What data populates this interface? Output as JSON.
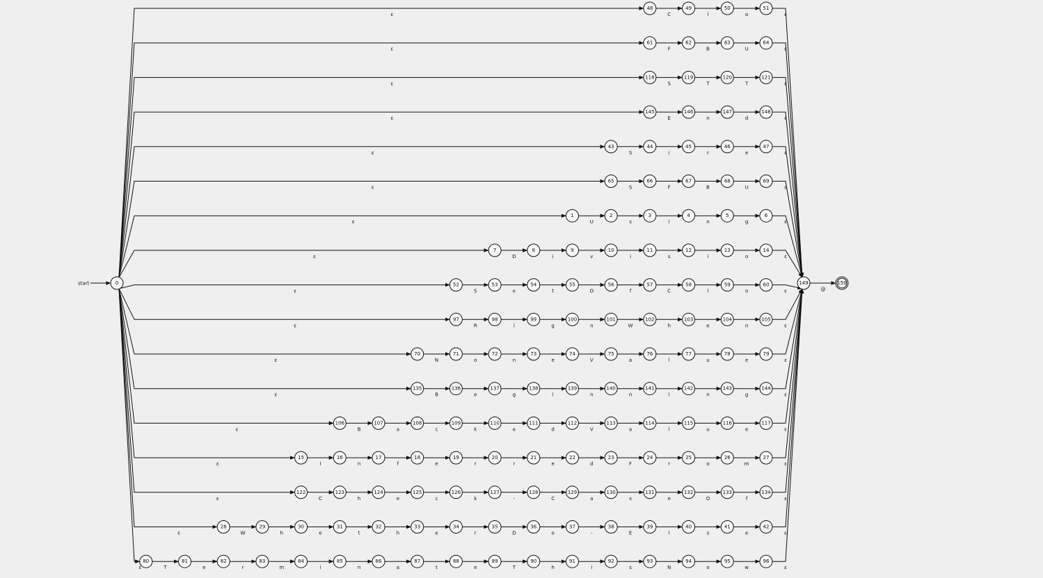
{
  "diagram": {
    "start_label": "start",
    "start_state": "0",
    "join_state": "149",
    "final_state": "150",
    "final_symbol": "@",
    "epsilon": "ε",
    "rows": [
      {
        "states": [
          "48",
          "49",
          "50",
          "51"
        ],
        "symbols": [
          "C",
          "l",
          "o"
        ]
      },
      {
        "states": [
          "61",
          "62",
          "63",
          "64"
        ],
        "symbols": [
          "F",
          "B",
          "U"
        ]
      },
      {
        "states": [
          "118",
          "119",
          "120",
          "121"
        ],
        "symbols": [
          "S",
          "T",
          "T"
        ]
      },
      {
        "states": [
          "145",
          "146",
          "147",
          "148"
        ],
        "symbols": [
          "E",
          "n",
          "d"
        ]
      },
      {
        "states": [
          "43",
          "44",
          "45",
          "46",
          "47"
        ],
        "symbols": [
          "S",
          "i",
          "r",
          "e"
        ]
      },
      {
        "states": [
          "65",
          "66",
          "67",
          "68",
          "69"
        ],
        "symbols": [
          "S",
          "F",
          "B",
          "U"
        ]
      },
      {
        "states": [
          "1",
          "2",
          "3",
          "4",
          "5",
          "6"
        ],
        "symbols": [
          "U",
          "s",
          "i",
          "n",
          "g"
        ]
      },
      {
        "states": [
          "7",
          "8",
          "9",
          "10",
          "11",
          "12",
          "13",
          "14"
        ],
        "symbols": [
          "D",
          "i",
          "v",
          "i",
          "s",
          "i",
          "o"
        ]
      },
      {
        "states": [
          "52",
          "53",
          "54",
          "55",
          "56",
          "57",
          "58",
          "59",
          "60"
        ],
        "symbols": [
          "S",
          "e",
          "t",
          "O",
          "f",
          "C",
          "l",
          "o"
        ]
      },
      {
        "states": [
          "97",
          "98",
          "99",
          "100",
          "101",
          "102",
          "103",
          "104",
          "105"
        ],
        "symbols": [
          "R",
          "i",
          "g",
          "n",
          "W",
          "h",
          "e",
          "n"
        ]
      },
      {
        "states": [
          "70",
          "71",
          "72",
          "73",
          "74",
          "75",
          "76",
          "77",
          "78",
          "79"
        ],
        "symbols": [
          "N",
          "o",
          "n",
          "e",
          "V",
          "a",
          "l",
          "u",
          "e"
        ]
      },
      {
        "states": [
          "135",
          "136",
          "137",
          "138",
          "139",
          "140",
          "141",
          "142",
          "143",
          "144"
        ],
        "symbols": [
          "B",
          "e",
          "g",
          "i",
          "n",
          "n",
          "i",
          "n",
          "g"
        ]
      },
      {
        "states": [
          "106",
          "107",
          "108",
          "109",
          "110",
          "111",
          "112",
          "113",
          "114",
          "115",
          "116",
          "117"
        ],
        "symbols": [
          "B",
          "a",
          "c",
          "k",
          "e",
          "d",
          "V",
          "a",
          "l",
          "u",
          "e"
        ]
      },
      {
        "states": [
          "15",
          "16",
          "17",
          "18",
          "19",
          "20",
          "21",
          "22",
          "23",
          "24",
          "25",
          "26",
          "27"
        ],
        "symbols": [
          "I",
          "n",
          "f",
          "e",
          "r",
          "r",
          "e",
          "d",
          "F",
          "r",
          "o",
          "m"
        ]
      },
      {
        "states": [
          "122",
          "123",
          "124",
          "125",
          "126",
          "127",
          "128",
          "129",
          "130",
          "131",
          "132",
          "133",
          "134"
        ],
        "symbols": [
          "C",
          "h",
          "e",
          "c",
          "k",
          "-",
          "C",
          "a",
          "s",
          "e",
          "O",
          "f"
        ]
      },
      {
        "states": [
          "28",
          "29",
          "30",
          "31",
          "32",
          "33",
          "34",
          "35",
          "36",
          "37",
          "38",
          "39",
          "40",
          "41",
          "42"
        ],
        "symbols": [
          "W",
          "h",
          "e",
          "t",
          "h",
          "e",
          "r",
          "D",
          "o",
          "-",
          "E",
          "l",
          "s",
          "e"
        ]
      },
      {
        "states": [
          "80",
          "81",
          "82",
          "83",
          "84",
          "85",
          "86",
          "87",
          "88",
          "89",
          "90",
          "91",
          "92",
          "93",
          "94",
          "95",
          "96"
        ],
        "symbols": [
          "T",
          "e",
          "r",
          "m",
          "i",
          "n",
          "a",
          "t",
          "e",
          "T",
          "h",
          "i",
          "s",
          "N",
          "o",
          "w"
        ]
      }
    ]
  }
}
